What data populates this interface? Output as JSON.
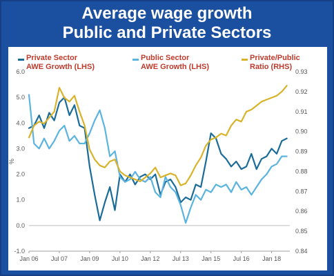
{
  "page_title_line1": "Average wage growth",
  "page_title_line2": "Public and Private Sectors",
  "legend": [
    {
      "line1": "Private Sector",
      "line2": "AWE Growth (LHS)",
      "color": "#1a6b98"
    },
    {
      "line1": "Public Sector",
      "line2": "AWE Growth (LHS)",
      "color": "#5bb3df"
    },
    {
      "line1": "Private/Public",
      "line2": "Ratio (RHS)",
      "color": "#d8b32a"
    }
  ],
  "chart_data": {
    "type": "line",
    "title": "Average wage growth Public and Private Sectors",
    "ylabel": "%",
    "x_tick_labels": [
      "Jan 06",
      "Jul 07",
      "Jan 09",
      "Jul 10",
      "Jan 12",
      "Jul 13",
      "Jan 15",
      "Jul 16",
      "Jan 18"
    ],
    "x_tick_values": [
      2006.0,
      2007.5,
      2009.0,
      2010.5,
      2012.0,
      2013.5,
      2015.0,
      2016.5,
      2018.0
    ],
    "xlim": [
      2006.0,
      2018.9
    ],
    "ylim_left": [
      -1.0,
      6.0
    ],
    "y_ticks_left": [
      "-1.0",
      "0.0",
      "1.0",
      "2.0",
      "3.0",
      "4.0",
      "5.0",
      "6.0"
    ],
    "ylim_right": [
      0.84,
      0.93
    ],
    "y_ticks_right": [
      "0.84",
      "0.85",
      "0.86",
      "0.87",
      "0.88",
      "0.89",
      "0.90",
      "0.91",
      "0.92",
      "0.93"
    ],
    "grid": false,
    "series": [
      {
        "name": "Private Sector AWE Growth (LHS)",
        "axis": "left",
        "color": "#1a6b98",
        "x": [
          2006.0,
          2006.25,
          2006.5,
          2006.75,
          2007.0,
          2007.25,
          2007.5,
          2007.75,
          2008.0,
          2008.25,
          2008.5,
          2008.75,
          2009.0,
          2009.25,
          2009.5,
          2009.75,
          2010.0,
          2010.25,
          2010.5,
          2010.75,
          2011.0,
          2011.25,
          2011.5,
          2011.75,
          2012.0,
          2012.25,
          2012.5,
          2012.75,
          2013.0,
          2013.25,
          2013.5,
          2013.75,
          2014.0,
          2014.25,
          2014.5,
          2014.75,
          2015.0,
          2015.25,
          2015.5,
          2015.75,
          2016.0,
          2016.25,
          2016.5,
          2016.75,
          2017.0,
          2017.25,
          2017.5,
          2017.75,
          2018.0,
          2018.25,
          2018.5,
          2018.75
        ],
        "y": [
          3.8,
          3.9,
          4.3,
          3.8,
          4.4,
          4.1,
          4.8,
          5.0,
          4.3,
          4.7,
          3.9,
          3.8,
          2.3,
          1.2,
          0.2,
          0.9,
          1.5,
          0.6,
          2.0,
          1.7,
          2.0,
          1.6,
          1.9,
          2.0,
          1.8,
          2.0,
          1.2,
          1.7,
          1.8,
          1.5,
          0.9,
          1.1,
          1.0,
          1.6,
          1.5,
          2.5,
          3.6,
          3.4,
          2.8,
          2.6,
          2.3,
          2.5,
          2.2,
          2.3,
          2.8,
          2.2,
          2.6,
          2.7,
          3.0,
          2.8,
          3.3,
          3.4
        ]
      },
      {
        "name": "Public Sector AWE Growth (LHS)",
        "axis": "left",
        "color": "#5bb3df",
        "x": [
          2006.0,
          2006.25,
          2006.5,
          2006.75,
          2007.0,
          2007.25,
          2007.5,
          2007.75,
          2008.0,
          2008.25,
          2008.5,
          2008.75,
          2009.0,
          2009.25,
          2009.5,
          2009.75,
          2010.0,
          2010.25,
          2010.5,
          2010.75,
          2011.0,
          2011.25,
          2011.5,
          2011.75,
          2012.0,
          2012.25,
          2012.5,
          2012.75,
          2013.0,
          2013.25,
          2013.5,
          2013.75,
          2014.0,
          2014.25,
          2014.5,
          2014.75,
          2015.0,
          2015.25,
          2015.5,
          2015.75,
          2016.0,
          2016.25,
          2016.5,
          2016.75,
          2017.0,
          2017.25,
          2017.5,
          2017.75,
          2018.0,
          2018.25,
          2018.5,
          2018.75
        ],
        "y": [
          5.1,
          3.2,
          3.0,
          3.4,
          3.0,
          3.3,
          3.7,
          3.9,
          3.3,
          3.5,
          3.2,
          3.2,
          3.6,
          4.1,
          4.5,
          3.8,
          2.7,
          2.9,
          1.9,
          1.7,
          1.8,
          2.1,
          1.8,
          1.7,
          1.9,
          1.3,
          1.1,
          1.9,
          1.5,
          1.3,
          0.8,
          0.1,
          0.7,
          1.2,
          1.0,
          1.4,
          1.3,
          1.6,
          1.5,
          1.6,
          1.3,
          1.7,
          1.4,
          1.5,
          1.2,
          1.5,
          1.8,
          2.0,
          2.3,
          2.4,
          2.7,
          2.7
        ]
      },
      {
        "name": "Private/Public Ratio (RHS)",
        "axis": "right",
        "color": "#d8b32a",
        "x": [
          2006.0,
          2006.25,
          2006.5,
          2006.75,
          2007.0,
          2007.25,
          2007.5,
          2007.75,
          2008.0,
          2008.25,
          2008.5,
          2008.75,
          2009.0,
          2009.25,
          2009.5,
          2009.75,
          2010.0,
          2010.25,
          2010.5,
          2010.75,
          2011.0,
          2011.25,
          2011.5,
          2011.75,
          2012.0,
          2012.25,
          2012.5,
          2012.75,
          2013.0,
          2013.25,
          2013.5,
          2013.75,
          2014.0,
          2014.25,
          2014.5,
          2014.75,
          2015.0,
          2015.25,
          2015.5,
          2015.75,
          2016.0,
          2016.25,
          2016.5,
          2016.75,
          2017.0,
          2017.25,
          2017.5,
          2017.75,
          2018.0,
          2018.25,
          2018.5,
          2018.75
        ],
        "y": [
          0.897,
          0.903,
          0.905,
          0.904,
          0.907,
          0.91,
          0.922,
          0.917,
          0.915,
          0.918,
          0.91,
          0.903,
          0.891,
          0.886,
          0.883,
          0.882,
          0.885,
          0.886,
          0.88,
          0.878,
          0.877,
          0.876,
          0.875,
          0.877,
          0.879,
          0.882,
          0.877,
          0.878,
          0.879,
          0.878,
          0.873,
          0.874,
          0.878,
          0.883,
          0.887,
          0.893,
          0.896,
          0.897,
          0.899,
          0.898,
          0.903,
          0.906,
          0.905,
          0.91,
          0.911,
          0.913,
          0.915,
          0.916,
          0.917,
          0.918,
          0.92,
          0.923
        ]
      }
    ]
  }
}
